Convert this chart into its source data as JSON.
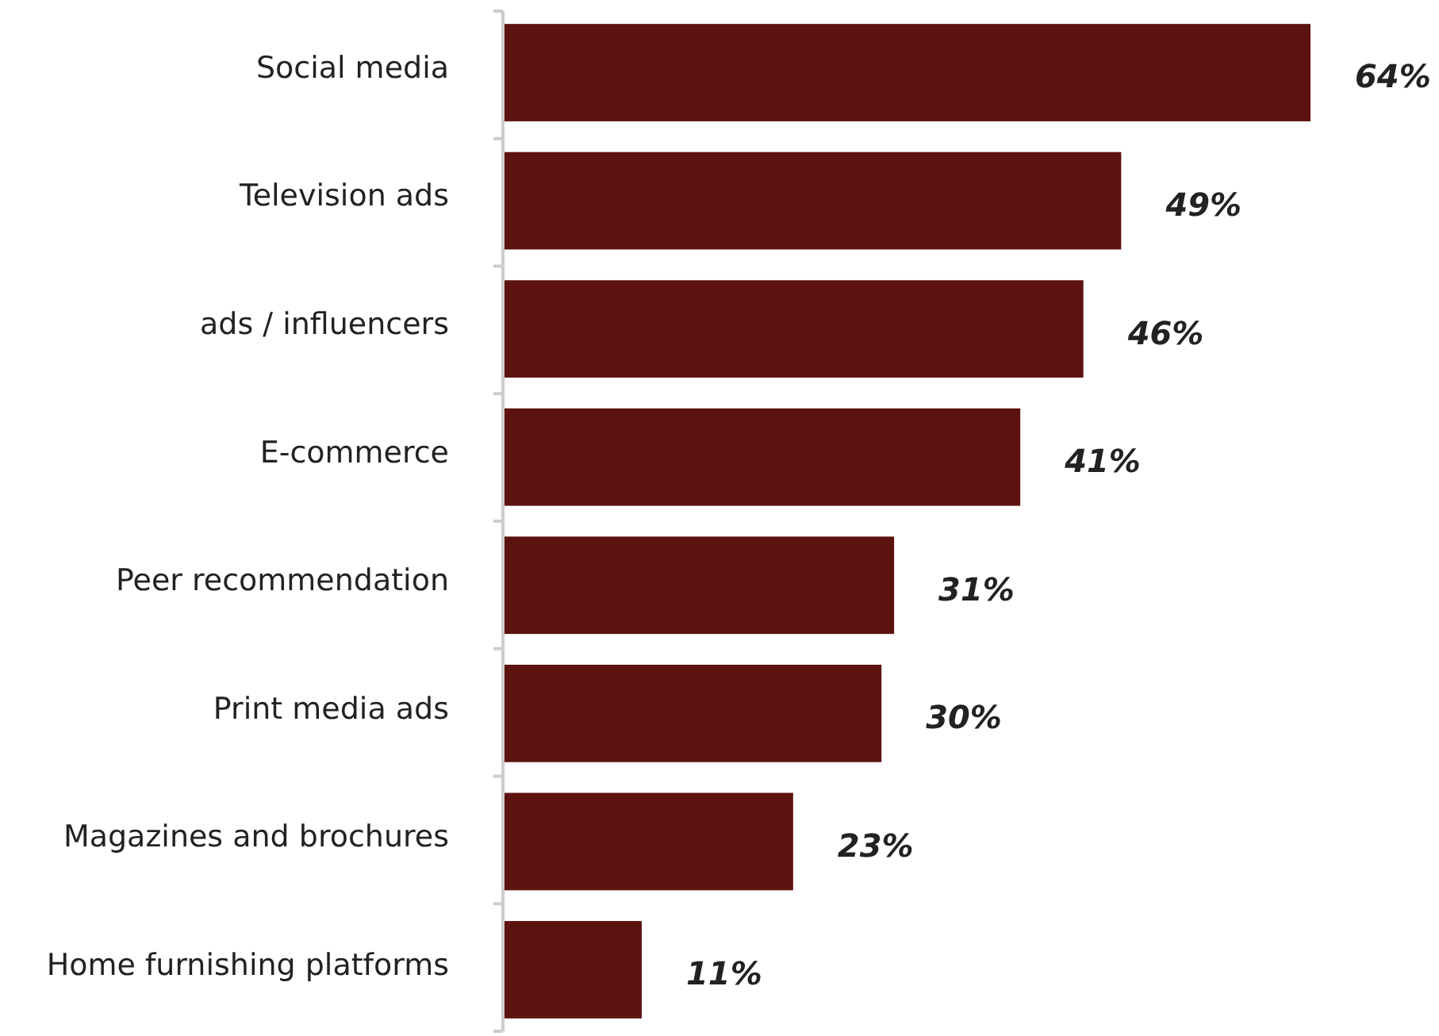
{
  "chart_data": {
    "type": "bar",
    "orientation": "horizontal",
    "categories": [
      "Social media",
      "Television ads",
      "ads / influencers",
      "E-commerce",
      "Peer recommendation",
      "Print media ads",
      "Magazines and brochures",
      "Home furnishing platforms"
    ],
    "values": [
      64,
      49,
      46,
      41,
      31,
      30,
      23,
      11
    ],
    "value_labels": [
      "64%",
      "49%",
      "46%",
      "41%",
      "31%",
      "30%",
      "23%",
      "11%"
    ],
    "color": "#5c1310"
  }
}
